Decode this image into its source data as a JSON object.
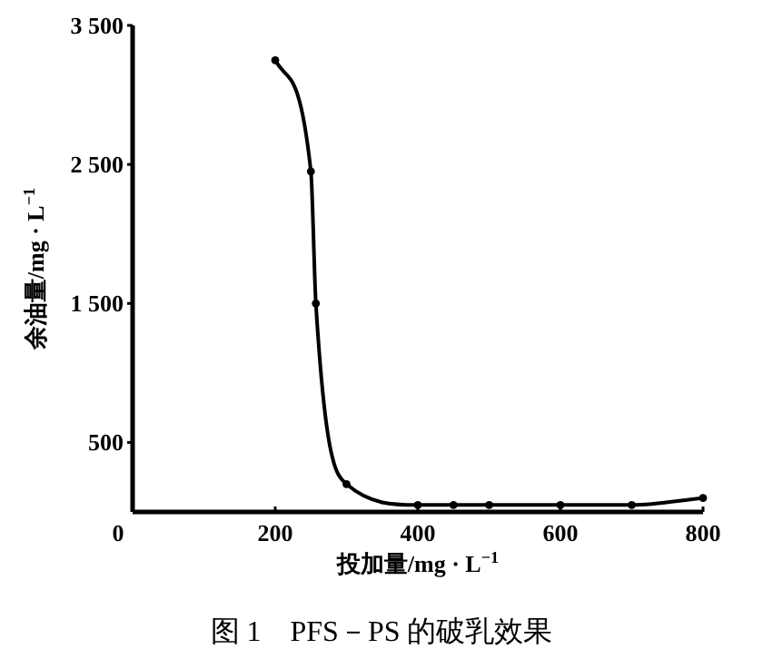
{
  "chart_data": {
    "type": "line",
    "title": "图 1　PFS－PS 的破乳效果",
    "xlabel": "投加量/mg · L$^{−1}$",
    "ylabel": "余油量/mg · L$^{−1}$",
    "x": [
      200,
      250,
      257,
      300,
      400,
      450,
      500,
      600,
      700,
      800
    ],
    "series": [
      {
        "color": "#000000",
        "values": [
          3250,
          2450,
          1500,
          200,
          50,
          50,
          50,
          50,
          50,
          100
        ]
      }
    ],
    "xlim": [
      0,
      800
    ],
    "xticks": [
      0,
      200,
      400,
      600,
      800
    ],
    "ylim": [
      0,
      3500
    ],
    "yticks": [
      {
        "value": 500,
        "label": "500"
      },
      {
        "value": 1500,
        "label": "1 500"
      },
      {
        "value": 2500,
        "label": "2 500"
      },
      {
        "value": 3500,
        "label": "3 500"
      }
    ],
    "marker": "circle",
    "line_style": "solid"
  }
}
